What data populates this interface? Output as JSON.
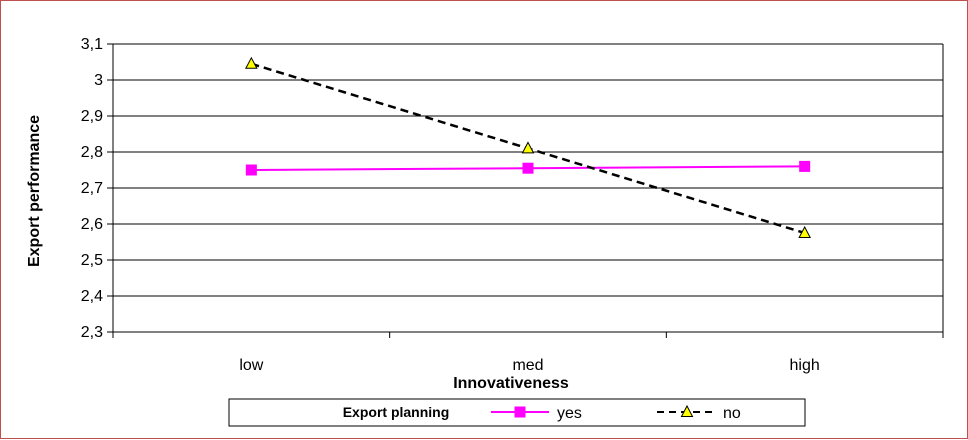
{
  "chart_data": {
    "type": "line",
    "categories": [
      "low",
      "med",
      "high"
    ],
    "series": [
      {
        "name": "yes",
        "values": [
          2.75,
          2.755,
          2.76
        ],
        "color": "#ff00ff",
        "marker": "square",
        "line_style": "solid"
      },
      {
        "name": "no",
        "values": [
          3.045,
          2.81,
          2.575
        ],
        "color": "#000000",
        "marker": "triangle",
        "marker_fill": "#ffff00",
        "line_style": "dashed"
      }
    ],
    "xlabel": "Innovativeness",
    "ylabel": "Export performance",
    "ylim": [
      2.3,
      3.1
    ],
    "yticks": [
      2.3,
      2.4,
      2.5,
      2.6,
      2.7,
      2.8,
      2.9,
      3.0,
      3.1
    ],
    "ytick_labels": [
      "2,3",
      "2,4",
      "2,5",
      "2,6",
      "2,7",
      "2,8",
      "2,9",
      "3",
      "3,1"
    ],
    "grid": "horizontal",
    "legend": {
      "title": "Export planning",
      "placement": "bottom"
    }
  }
}
